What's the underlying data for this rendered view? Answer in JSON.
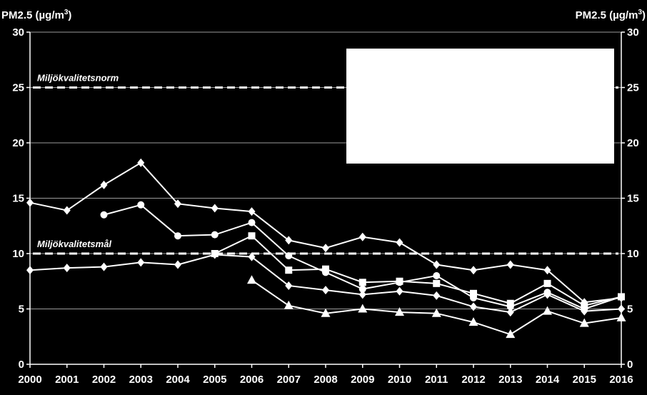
{
  "chart_data": {
    "type": "line",
    "ylabel_left": "PM2.5 (µg/m",
    "ylabel_right": "PM2.5 (µg/m",
    "ylabel_superscript": "3",
    "ylabel_suffix": ")",
    "ylim": [
      0,
      30
    ],
    "yticks": [
      0,
      5,
      10,
      15,
      20,
      25,
      30
    ],
    "x": [
      2000,
      2001,
      2002,
      2003,
      2004,
      2005,
      2006,
      2007,
      2008,
      2009,
      2010,
      2011,
      2012,
      2013,
      2014,
      2015,
      2016
    ],
    "grid": true,
    "legend_box_color": "#ffffff",
    "series": [
      {
        "marker": "diamond",
        "values": [
          14.6,
          13.9,
          16.2,
          18.2,
          14.5,
          14.1,
          13.8,
          11.2,
          10.5,
          11.5,
          11.0,
          9.0,
          8.5,
          9.0,
          8.5,
          5.6,
          6.0
        ]
      },
      {
        "marker": "circle",
        "values": [
          null,
          null,
          13.5,
          14.4,
          11.6,
          11.7,
          12.8,
          9.8,
          8.3,
          6.8,
          7.4,
          8.0,
          6.0,
          5.2,
          6.5,
          5.0,
          6.1
        ]
      },
      {
        "marker": "diamond",
        "values": [
          8.5,
          8.7,
          8.8,
          9.2,
          9.0,
          9.9,
          9.7,
          7.1,
          6.7,
          6.3,
          6.6,
          6.2,
          5.2,
          4.7,
          6.3,
          4.8,
          5.0
        ]
      },
      {
        "marker": "square",
        "values": [
          null,
          null,
          null,
          null,
          null,
          10.0,
          11.6,
          8.5,
          8.6,
          7.4,
          7.5,
          7.3,
          6.4,
          5.5,
          7.3,
          5.3,
          6.1
        ]
      },
      {
        "marker": "triangle",
        "values": [
          null,
          null,
          null,
          null,
          null,
          null,
          7.6,
          5.3,
          4.6,
          5.0,
          4.7,
          4.6,
          3.8,
          2.7,
          4.8,
          3.7,
          4.2
        ]
      }
    ],
    "reference_lines": [
      {
        "label": "Miljökvalitetsnorm",
        "value": 25
      },
      {
        "label": "Miljökvalitetsmål",
        "value": 10
      }
    ]
  }
}
